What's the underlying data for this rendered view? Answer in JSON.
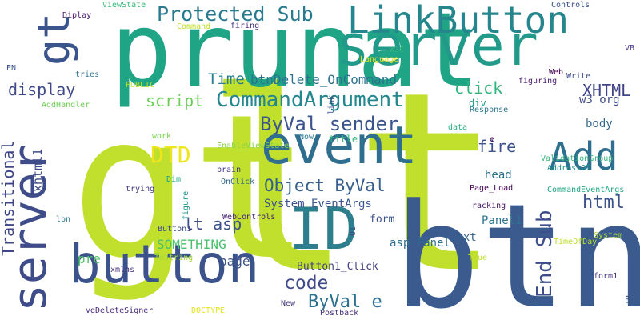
{
  "cloud": {
    "words": [
      {
        "text": "gt",
        "color": "#c1e02e"
      },
      {
        "text": "lt",
        "color": "#c1e02e"
      },
      {
        "text": "btn",
        "color": "#3b5b8e"
      },
      {
        "text": "prunat",
        "color": "#20a486"
      },
      {
        "text": "server",
        "color": "#229a89"
      },
      {
        "text": "event",
        "color": "#2f6e8e"
      },
      {
        "text": "ID",
        "color": "#2d7f8e"
      },
      {
        "text": "button",
        "color": "#3b528b"
      },
      {
        "text": "Add",
        "color": "#2c6f8e"
      },
      {
        "text": "server",
        "color": "#3e4c8a"
      },
      {
        "text": "gt",
        "color": "#3a548c"
      },
      {
        "text": "LinkButton",
        "color": "#25868d"
      },
      {
        "text": "Protected Sub",
        "color": "#287a8e"
      },
      {
        "text": "CommandArgument",
        "color": "#24868e"
      },
      {
        "text": "ByVal sender",
        "color": "#3a548c"
      },
      {
        "text": "Object ByVal",
        "color": "#355f8d"
      },
      {
        "text": "DTD",
        "color": "#f0e51d"
      },
      {
        "text": "html",
        "color": "#3b528b"
      },
      {
        "text": "code",
        "color": "#3e4a89"
      },
      {
        "text": "ByVal e",
        "color": "#2d708e"
      },
      {
        "text": "End Sub",
        "color": "#3d4d8a"
      },
      {
        "text": "lt asp",
        "color": "#3c508b"
      },
      {
        "text": "XHTML",
        "color": "#404588"
      },
      {
        "text": "Transitional",
        "color": "#3f4889"
      },
      {
        "text": "display",
        "color": "#3f4889"
      },
      {
        "text": "script",
        "color": "#6ccd5a"
      },
      {
        "text": "click",
        "color": "#30b47c"
      },
      {
        "text": "fire",
        "color": "#3c518b"
      },
      {
        "text": "Time",
        "color": "#287d8e"
      },
      {
        "text": "btnDelete_OnCommand",
        "color": "#2c718e"
      },
      {
        "text": "xhtml1",
        "color": "#3e4c8a"
      },
      {
        "text": "SOMETHING",
        "color": "#4ac16d"
      },
      {
        "text": "page",
        "color": "#3a538b"
      },
      {
        "text": "pre",
        "color": "#52c569"
      },
      {
        "text": "body",
        "color": "#31688e"
      },
      {
        "text": "head",
        "color": "#2d718e"
      },
      {
        "text": "w3 org",
        "color": "#3e4c8a"
      },
      {
        "text": "System EventArgs",
        "color": "#39558c"
      },
      {
        "text": "asp Panel",
        "color": "#2e6e8e"
      },
      {
        "text": "Panel1",
        "color": "#2c728e"
      },
      {
        "text": "Text",
        "color": "#33628d"
      },
      {
        "text": "Button1_Click",
        "color": "#433e85"
      },
      {
        "text": "form",
        "color": "#3b518b"
      },
      {
        "text": "div",
        "color": "#1fa088"
      },
      {
        "text": "title",
        "color": "#31b57b"
      },
      {
        "text": "xmlns",
        "color": "#46307e"
      },
      {
        "text": "ToString",
        "color": "#a5db36"
      },
      {
        "text": "New",
        "color": "#44397f"
      },
      {
        "text": "vgDeleteSigner",
        "color": "#482979"
      },
      {
        "text": "DOCTYPE",
        "color": "#e7e419"
      },
      {
        "text": "Postback",
        "color": "#46327e"
      },
      {
        "text": "True",
        "color": "#bddf26"
      },
      {
        "text": "form1",
        "color": "#46337f"
      },
      {
        "text": "TR",
        "color": "#3b528b"
      },
      {
        "text": "System",
        "color": "#a8db34"
      },
      {
        "text": "TimeOfDay",
        "color": "#bade28"
      },
      {
        "text": "racking",
        "color": "#481668"
      },
      {
        "text": "Page_Load",
        "color": "#440154"
      },
      {
        "text": "CommandEventArgs",
        "color": "#22a884"
      },
      {
        "text": "AddressOf",
        "color": "#21918c"
      },
      {
        "text": "ValidationGroup",
        "color": "#35b779"
      },
      {
        "text": "e",
        "color": "#440154"
      },
      {
        "text": "Response",
        "color": "#2a788e"
      },
      {
        "text": "data",
        "color": "#27ad81"
      },
      {
        "text": "Now",
        "color": "#2a788e"
      },
      {
        "text": "EnableViewState",
        "color": "#86d549"
      },
      {
        "text": "work",
        "color": "#7ad151"
      },
      {
        "text": "brain",
        "color": "#443983"
      },
      {
        "text": "Dim",
        "color": "#1fa187"
      },
      {
        "text": "OnClick",
        "color": "#31688e"
      },
      {
        "text": "trying",
        "color": "#443a83"
      },
      {
        "text": "figure",
        "color": "#1f988b"
      },
      {
        "text": "WebControls",
        "color": "#482173"
      },
      {
        "text": "Button1",
        "color": "#3e4989"
      },
      {
        "text": "lbn",
        "color": "#2a788e"
      },
      {
        "text": "UI",
        "color": "#3f4788"
      },
      {
        "text": "link",
        "color": "#3b528b"
      },
      {
        "text": "AddHandler",
        "color": "#6ece58"
      },
      {
        "text": "PUBLIC",
        "color": "#bddf26"
      },
      {
        "text": "tries",
        "color": "#2c728e"
      },
      {
        "text": "EN",
        "color": "#3b528b"
      },
      {
        "text": "Diplay",
        "color": "#481a6c"
      },
      {
        "text": "ViewState",
        "color": "#35b779"
      },
      {
        "text": "Command",
        "color": "#bddf26"
      },
      {
        "text": "firing",
        "color": "#46327e"
      },
      {
        "text": "Controls",
        "color": "#3b528b"
      },
      {
        "text": "VB",
        "color": "#46337f"
      },
      {
        "text": "W3C",
        "color": "#31b57b"
      },
      {
        "text": "Language",
        "color": "#e5e419"
      },
      {
        "text": "Web",
        "color": "#440154"
      },
      {
        "text": "Write",
        "color": "#3e4a89"
      },
      {
        "text": "figuring",
        "color": "#48196b"
      }
    ]
  }
}
